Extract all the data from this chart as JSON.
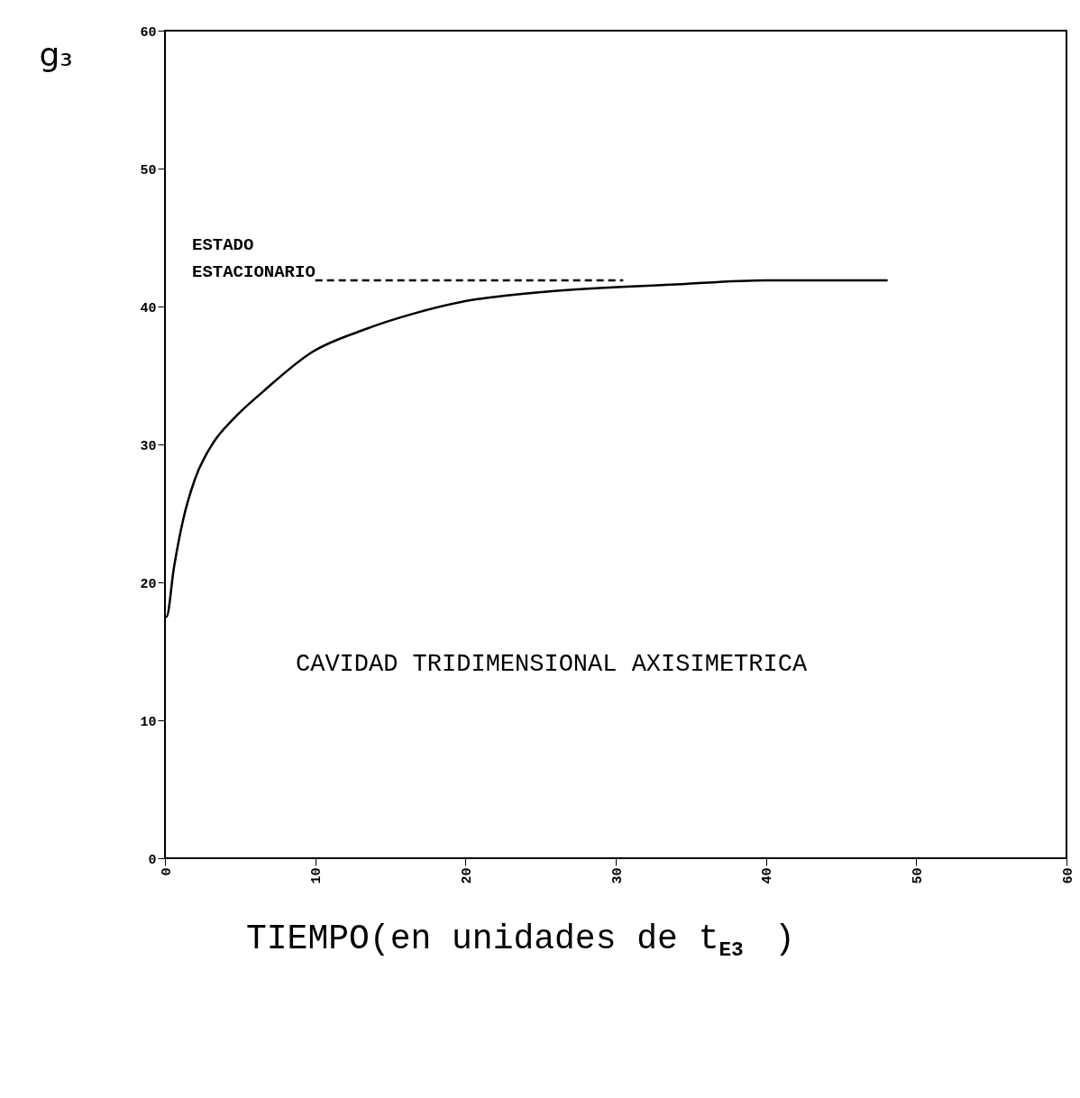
{
  "chart_data": {
    "type": "line",
    "title": "CAVIDAD TRIDIMENSIONAL AXISIMETRICA",
    "xlabel": "TIEMPO(en unidades de t$_{E3}$ )",
    "ylabel": "g₃",
    "series": [
      {
        "color": "#000000",
        "line_style": "solid",
        "x": [
          0,
          0.1,
          0.6,
          1.2,
          2.0,
          3.2,
          4.6,
          6.6,
          9.8,
          13.2,
          16.6,
          20.6,
          22,
          25.6,
          34,
          40,
          48.1
        ],
        "values": [
          17.5,
          17.5,
          21.1,
          24.5,
          27.5,
          30.1,
          31.9,
          33.9,
          36.7,
          38.3,
          39.5,
          40.5,
          40.7,
          41.1,
          41.6,
          41.9,
          41.9
        ]
      },
      {
        "color": "#000000",
        "line_style": "dashed",
        "x": [
          10,
          30.5
        ],
        "values": [
          41.9,
          41.9
        ]
      }
    ],
    "annotations": [
      "ESTADO",
      "ESTACIONARIO"
    ],
    "xlim": [
      0,
      60
    ],
    "ylim": [
      0,
      60
    ],
    "xticks": [
      0,
      10,
      20,
      30,
      40,
      50,
      60
    ],
    "yticks": [
      0,
      10,
      20,
      30,
      40,
      50,
      60
    ]
  }
}
